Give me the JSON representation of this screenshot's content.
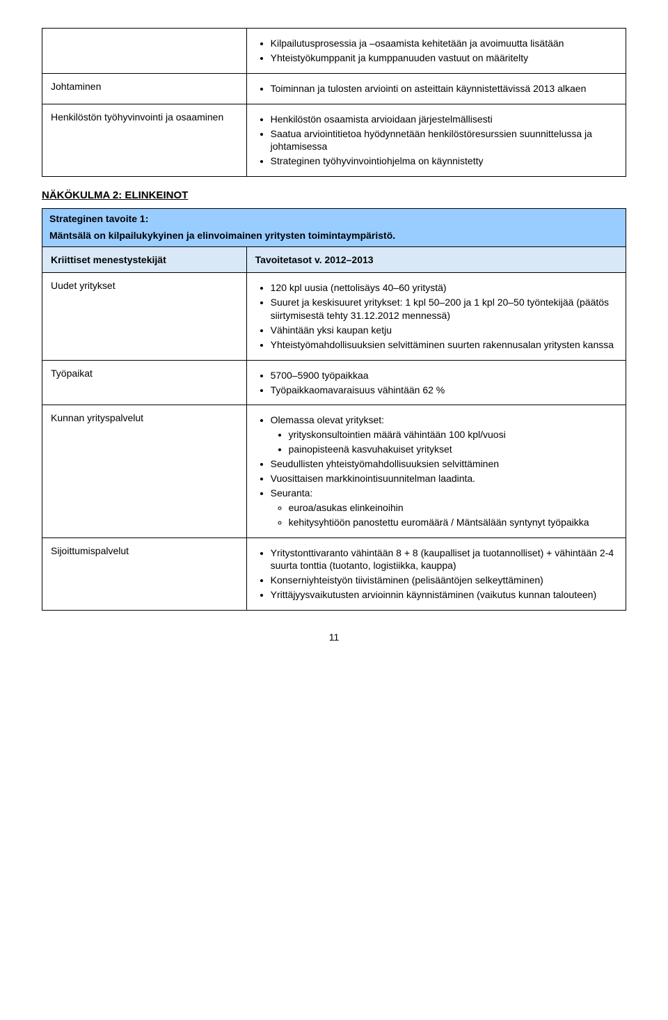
{
  "table1": {
    "row1_right": [
      "Kilpailutusprosessia ja –osaamista kehitetään ja avoimuutta lisätään",
      "Yhteistyökumppanit ja kumppanuuden vastuut on määritelty"
    ],
    "row2_left": "Johtaminen",
    "row2_right": [
      "Toiminnan ja tulosten arviointi on asteittain käynnistettävissä 2013 alkaen"
    ],
    "row3_left": "Henkilöstön työhyvinvointi ja osaaminen",
    "row3_right": [
      "Henkilöstön osaamista arvioidaan järjestelmällisesti",
      "Saatua arviointitietoa hyödynnetään henkilöstöresurssien suunnittelussa ja johtamisessa",
      "Strateginen työhyvinvointiohjelma on käynnistetty"
    ]
  },
  "section2_heading": "NÄKÖKULMA 2: ELINKEINOT",
  "table2": {
    "strategic_label": "Strateginen tavoite 1:",
    "strategic_text": "Mäntsälä on kilpailukykyinen ja elinvoimainen yritysten toimintaympäristö.",
    "kriittiset_label": "Kriittiset menestystekijät",
    "tavoitetasot_label": "Tavoitetasot v. 2012–2013",
    "row_uudet_left": "Uudet yritykset",
    "row_uudet_right": [
      "120 kpl uusia (nettolisäys 40–60 yritystä)",
      "Suuret ja keskisuuret yritykset: 1 kpl 50–200 ja 1 kpl 20–50 työntekijää (päätös siirtymisestä tehty 31.12.2012 mennessä)",
      "Vähintään yksi kaupan ketju",
      "Yhteistyömahdollisuuksien selvittäminen suurten rakennusalan yritysten kanssa"
    ],
    "row_tyopaikat_left": "Työpaikat",
    "row_tyopaikat_right": [
      "5700–5900 työpaikkaa",
      "Työpaikkaomavaraisuus vähintään 62 %"
    ],
    "row_kunnan_left": "Kunnan yrityspalvelut",
    "row_kunnan_right_item1": "Olemassa olevat yritykset:",
    "row_kunnan_right_item1_sub": [
      "yrityskonsultointien määrä vähintään 100 kpl/vuosi",
      "painopisteenä kasvuhakuiset yritykset"
    ],
    "row_kunnan_right_item2": "Seudullisten yhteistyömahdollisuuksien selvittäminen",
    "row_kunnan_right_item3": "Vuosittaisen markkinointisuunnitelman laadinta.",
    "row_kunnan_right_item4": "Seuranta:",
    "row_kunnan_right_item4_sub": [
      "euroa/asukas elinkeinoihin",
      "kehitysyhtiöön panostettu euromäärä / Mäntsälään syntynyt työpaikka"
    ],
    "row_sijoittumis_left": "Sijoittumispalvelut",
    "row_sijoittumis_right": [
      "Yritystonttivaranto vähintään 8 + 8 (kaupalliset ja tuotannolliset) + vähintään 2-4 suurta tonttia (tuotanto, logistiikka, kauppa)",
      "Konserniyhteistyön tiivistäminen (pelisääntöjen selkeyttäminen)",
      "Yrittäjyysvaikutusten arvioinnin käynnistäminen (vaikutus kunnan talouteen)"
    ]
  },
  "page_number": "11",
  "colors": {
    "header_blue": "#99ccff",
    "subheader_blue": "#d9e8f7",
    "border": "#000000",
    "background": "#ffffff"
  }
}
